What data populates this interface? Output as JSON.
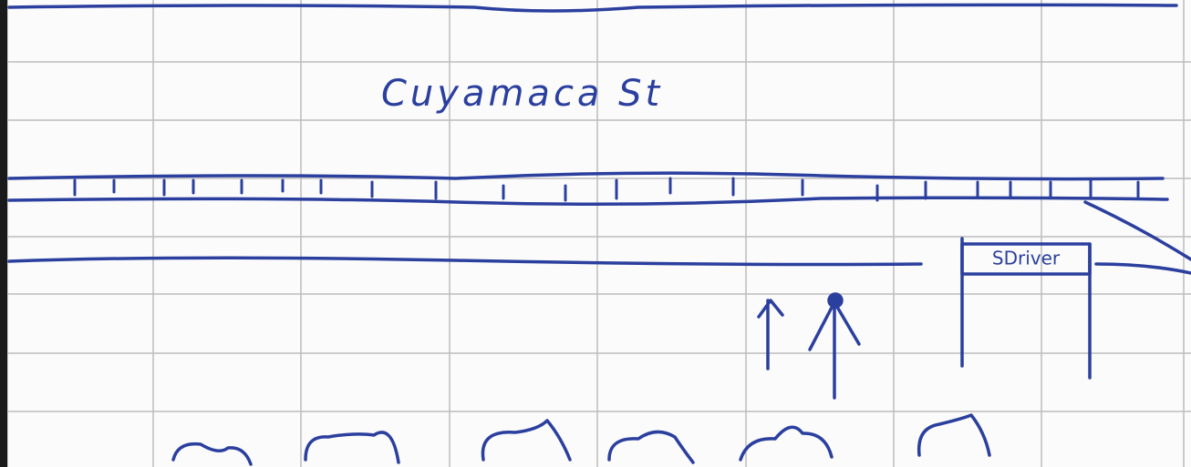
{
  "street_label": "Cuyamaca St",
  "station_sign": "SDriver"
}
